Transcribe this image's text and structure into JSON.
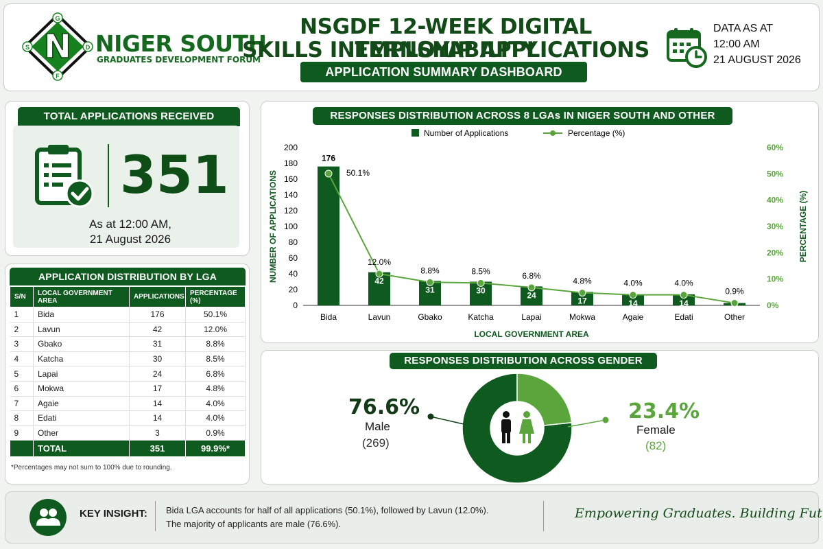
{
  "header": {
    "logo_name": "NIGER SOUTH",
    "logo_subtitle": "GRADUATES DEVELOPMENT FORUM",
    "logo_letters": [
      "G",
      "D",
      "F",
      "S"
    ],
    "logo_center": "N",
    "title_line1": "NSGDF 12-WEEK DIGITAL EMPLOYABILITY",
    "title_line2": "SKILLS INTERNSHIP APPLICATIONS",
    "subtitle": "APPLICATION SUMMARY DASHBOARD",
    "date_line1": "DATA AS AT",
    "date_line2": "12:00 AM",
    "date_line3": "21 AUGUST 2026",
    "icon": "calendar-clock-icon"
  },
  "total_panel": {
    "title": "TOTAL APPLICATIONS RECEIVED",
    "value": "351",
    "note_line1": "As at 12:00 AM,",
    "note_line2": "21 August 2026",
    "icon": "clipboard-check-icon"
  },
  "lga_table": {
    "title": "APPLICATION DISTRIBUTION BY LGA",
    "headers": [
      "S/N",
      "LOCAL GOVERNMENT AREA",
      "APPLICATIONS",
      "PERCENTAGE (%)"
    ],
    "rows": [
      [
        "1",
        "Bida",
        "176",
        "50.1%"
      ],
      [
        "2",
        "Lavun",
        "42",
        "12.0%"
      ],
      [
        "3",
        "Gbako",
        "31",
        "8.8%"
      ],
      [
        "4",
        "Katcha",
        "30",
        "8.5%"
      ],
      [
        "5",
        "Lapai",
        "24",
        "6.8%"
      ],
      [
        "6",
        "Mokwa",
        "17",
        "4.8%"
      ],
      [
        "7",
        "Agaie",
        "14",
        "4.0%"
      ],
      [
        "8",
        "Edati",
        "14",
        "4.0%"
      ],
      [
        "9",
        "Other",
        "3",
        "0.9%"
      ]
    ],
    "total_label": "TOTAL",
    "total_value": "351",
    "total_pct": "99.9%*",
    "footnote": "*Percentages may not sum to 100% due to rounding."
  },
  "chart_data": [
    {
      "type": "bar",
      "title": "RESPONSES DISTRIBUTION ACROSS 8 LGAs IN NIGER SOUTH AND OTHER",
      "xlabel": "LOCAL GOVERNMENT AREA",
      "ylabel": "NUMBER OF APPLICATIONS",
      "y2label": "PERCENTAGE (%)",
      "categories": [
        "Bida",
        "Lavun",
        "Gbako",
        "Katcha",
        "Lapai",
        "Mokwa",
        "Agaie",
        "Edati",
        "Other"
      ],
      "series": [
        {
          "name": "Number of Applications",
          "type": "bar",
          "values": [
            176,
            42,
            31,
            30,
            24,
            17,
            14,
            14,
            3
          ],
          "color": "#0f5a1e"
        },
        {
          "name": "Percentage (%)",
          "type": "line",
          "axis": "right",
          "values": [
            50.1,
            12.0,
            8.8,
            8.5,
            6.8,
            4.8,
            4.0,
            4.0,
            0.9
          ],
          "color": "#5aa63c"
        }
      ],
      "ylim": [
        0,
        200
      ],
      "yticks": [
        0,
        20,
        40,
        60,
        80,
        100,
        120,
        140,
        160,
        180,
        200
      ],
      "y2lim": [
        0,
        60
      ],
      "y2ticks": [
        "0%",
        "10%",
        "20%",
        "30%",
        "40%",
        "50%",
        "60%"
      ],
      "legend": "top",
      "grid": false
    },
    {
      "type": "pie",
      "title": "RESPONSES DISTRIBUTION ACROSS GENDER",
      "categories": [
        "Male",
        "Female"
      ],
      "values": [
        269,
        82
      ],
      "percent_labels": [
        "76.6%",
        "23.4%"
      ],
      "count_labels": [
        "(269)",
        "(82)"
      ],
      "colors": [
        "#0f5a1e",
        "#5aa63c"
      ],
      "donut": true,
      "center_icon": "male-female-icon"
    }
  ],
  "insight": {
    "label": "KEY INSIGHT:",
    "line1": "Bida LGA accounts for half of all applications (50.1%), followed by Lavun (12.0%).",
    "line2": "The majority of applicants are male (76.6%).",
    "icon": "people-icon"
  },
  "tagline": "Empowering Graduates. Building Futures."
}
